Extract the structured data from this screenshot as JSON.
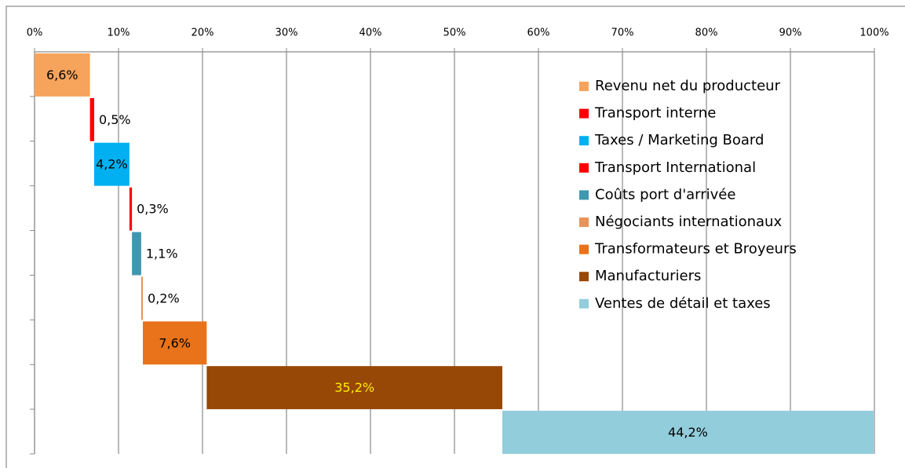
{
  "chart_data": {
    "type": "waterfall",
    "orientation": "horizontal",
    "xlim": [
      0,
      100
    ],
    "xticks": [
      {
        "value": 0,
        "label": "0%"
      },
      {
        "value": 10,
        "label": "10%"
      },
      {
        "value": 20,
        "label": "20%"
      },
      {
        "value": 30,
        "label": "30%"
      },
      {
        "value": 40,
        "label": "40%"
      },
      {
        "value": 50,
        "label": "50%"
      },
      {
        "value": 60,
        "label": "60%"
      },
      {
        "value": 70,
        "label": "70%"
      },
      {
        "value": 80,
        "label": "80%"
      },
      {
        "value": 90,
        "label": "90%"
      },
      {
        "value": 100,
        "label": "100%"
      }
    ],
    "grid": true,
    "legend": "upper right",
    "series": [
      {
        "name": "Revenu net du producteur",
        "color": "#f6a35c",
        "label_color": "#000000",
        "values": [
          6.6
        ],
        "value_labels": [
          "6,6%"
        ]
      },
      {
        "name": "Transport interne",
        "color": "#ff0000",
        "label_color": "#000000",
        "values": [
          0.5
        ],
        "value_labels": [
          "0,5%"
        ]
      },
      {
        "name": "Taxes / Marketing Board",
        "color": "#00b0f0",
        "label_color": "#000000",
        "values": [
          4.2
        ],
        "value_labels": [
          "4,2%"
        ]
      },
      {
        "name": "Transport International",
        "color": "#ff0000",
        "label_color": "#000000",
        "values": [
          0.3
        ],
        "value_labels": [
          "0,3%"
        ]
      },
      {
        "name": "Coûts port d'arrivée",
        "color": "#3f98b0",
        "label_color": "#000000",
        "values": [
          1.1
        ],
        "value_labels": [
          "1,1%"
        ]
      },
      {
        "name": "Négociants internationaux",
        "color": "#e8935a",
        "label_color": "#000000",
        "values": [
          0.2
        ],
        "value_labels": [
          "0,2%"
        ]
      },
      {
        "name": "Transformateurs et Broyeurs",
        "color": "#e8731a",
        "label_color": "#000000",
        "values": [
          7.6
        ],
        "value_labels": [
          "7,6%"
        ]
      },
      {
        "name": "Manufacturiers",
        "color": "#974806",
        "label_color": "#ffee00",
        "values": [
          35.2
        ],
        "value_labels": [
          "35,2%"
        ]
      },
      {
        "name": "Ventes de détail et taxes",
        "color": "#92cddc",
        "label_color": "#000000",
        "values": [
          44.2
        ],
        "value_labels": [
          "44,2%"
        ]
      }
    ]
  }
}
